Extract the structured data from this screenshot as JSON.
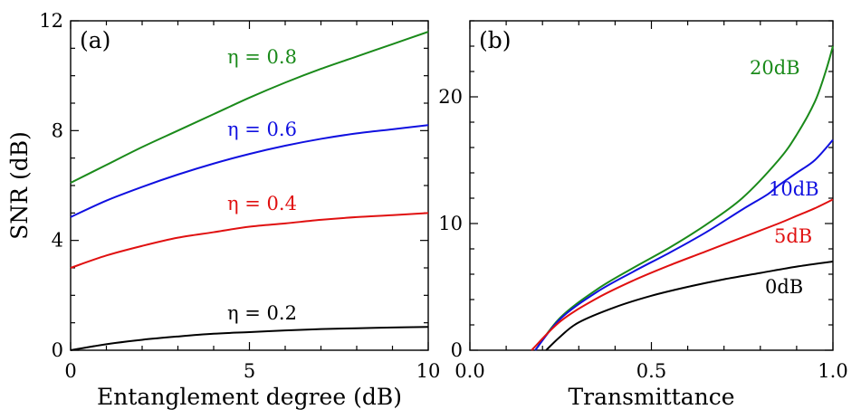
{
  "chart_data": [
    {
      "panel": "(a)",
      "type": "line",
      "xlabel": "Entanglement degree (dB)",
      "ylabel": "SNR (dB)",
      "xlim": [
        0,
        10
      ],
      "ylim": [
        0,
        12
      ],
      "xticks": [
        0,
        5,
        10
      ],
      "yticks": [
        0,
        4,
        8,
        12
      ],
      "grid": false,
      "series": [
        {
          "name": "η = 0.8",
          "color": "#1a8a1a",
          "x": [
            0,
            1,
            2,
            3,
            4,
            5,
            6,
            7,
            8,
            9,
            10
          ],
          "y": [
            6.1,
            6.75,
            7.4,
            8.0,
            8.6,
            9.2,
            9.75,
            10.25,
            10.7,
            11.15,
            11.6
          ]
        },
        {
          "name": "η = 0.6",
          "color": "#1010e0",
          "x": [
            0,
            1,
            2,
            3,
            4,
            5,
            6,
            7,
            8,
            9,
            10
          ],
          "y": [
            4.85,
            5.45,
            5.95,
            6.4,
            6.8,
            7.15,
            7.45,
            7.7,
            7.9,
            8.05,
            8.2
          ]
        },
        {
          "name": "η = 0.4",
          "color": "#e01010",
          "x": [
            0,
            1,
            2,
            3,
            4,
            5,
            6,
            7,
            8,
            9,
            10
          ],
          "y": [
            3.0,
            3.45,
            3.8,
            4.1,
            4.3,
            4.5,
            4.62,
            4.75,
            4.85,
            4.92,
            5.0
          ]
        },
        {
          "name": "η = 0.2",
          "color": "#000000",
          "x": [
            0,
            1,
            2,
            3,
            4,
            5,
            6,
            7,
            8,
            9,
            10
          ],
          "y": [
            0.0,
            0.22,
            0.38,
            0.5,
            0.6,
            0.66,
            0.72,
            0.77,
            0.8,
            0.83,
            0.85
          ]
        }
      ]
    },
    {
      "panel": "(b)",
      "type": "line",
      "xlabel": "Transmittance",
      "ylabel": "",
      "xlim": [
        0,
        1
      ],
      "ylim": [
        0,
        26
      ],
      "xticks": [
        0.0,
        0.5,
        1.0
      ],
      "yticks": [
        0,
        10,
        20
      ],
      "grid": false,
      "series": [
        {
          "name": "20dB",
          "color": "#1a8a1a",
          "x": [
            0.18,
            0.25,
            0.35,
            0.45,
            0.55,
            0.65,
            0.75,
            0.85,
            0.9,
            0.95,
            0.98,
            1.0
          ],
          "y": [
            0.0,
            2.6,
            4.8,
            6.5,
            8.1,
            9.9,
            12.0,
            15.0,
            17.0,
            19.6,
            22.0,
            24.0
          ]
        },
        {
          "name": "10dB",
          "color": "#1010e0",
          "x": [
            0.18,
            0.25,
            0.35,
            0.45,
            0.55,
            0.65,
            0.75,
            0.82,
            0.85,
            0.9,
            0.95,
            1.0
          ],
          "y": [
            0.0,
            2.5,
            4.6,
            6.2,
            7.7,
            9.3,
            11.1,
            12.3,
            13.0,
            14.0,
            15.0,
            16.6
          ]
        },
        {
          "name": "5dB",
          "color": "#e01010",
          "x": [
            0.17,
            0.25,
            0.35,
            0.45,
            0.55,
            0.65,
            0.75,
            0.85,
            0.9,
            0.95,
            1.0
          ],
          "y": [
            0.0,
            2.3,
            4.1,
            5.5,
            6.7,
            7.8,
            8.9,
            10.0,
            10.6,
            11.2,
            11.9
          ]
        },
        {
          "name": "0dB",
          "color": "#000000",
          "x": [
            0.21,
            0.25,
            0.3,
            0.4,
            0.5,
            0.6,
            0.7,
            0.8,
            0.9,
            1.0
          ],
          "y": [
            0.0,
            1.1,
            2.2,
            3.4,
            4.3,
            5.0,
            5.6,
            6.1,
            6.6,
            7.0
          ]
        }
      ]
    }
  ]
}
